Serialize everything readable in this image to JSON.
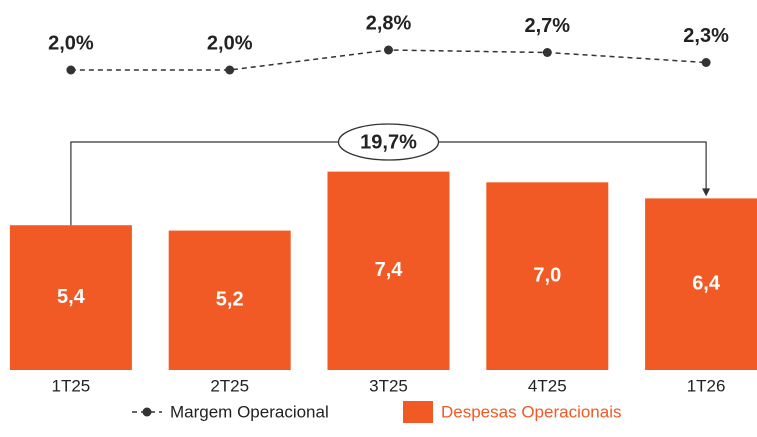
{
  "chart_data": {
    "type": "bar",
    "categories": [
      "1T25",
      "2T25",
      "3T25",
      "4T25",
      "1T26"
    ],
    "series": [
      {
        "name": "Despesas Operacionais",
        "type": "bar",
        "color": "#F15A24",
        "values": [
          5.4,
          5.2,
          7.4,
          7.0,
          6.4
        ],
        "value_labels": [
          "5,4",
          "5,2",
          "7,4",
          "7,0",
          "6,4"
        ]
      },
      {
        "name": "Margem Operacional",
        "type": "line",
        "axis": "y2",
        "color": "#333333",
        "values": [
          2.0,
          2.0,
          2.8,
          2.7,
          2.3
        ],
        "value_labels": [
          "2,0%",
          "2,0%",
          "2,8%",
          "2,7%",
          "2,3%"
        ]
      }
    ],
    "ylim": [
      0,
      13.8
    ],
    "y2lim": [
      0,
      4.8
    ],
    "annotation": "19,7%"
  }
}
